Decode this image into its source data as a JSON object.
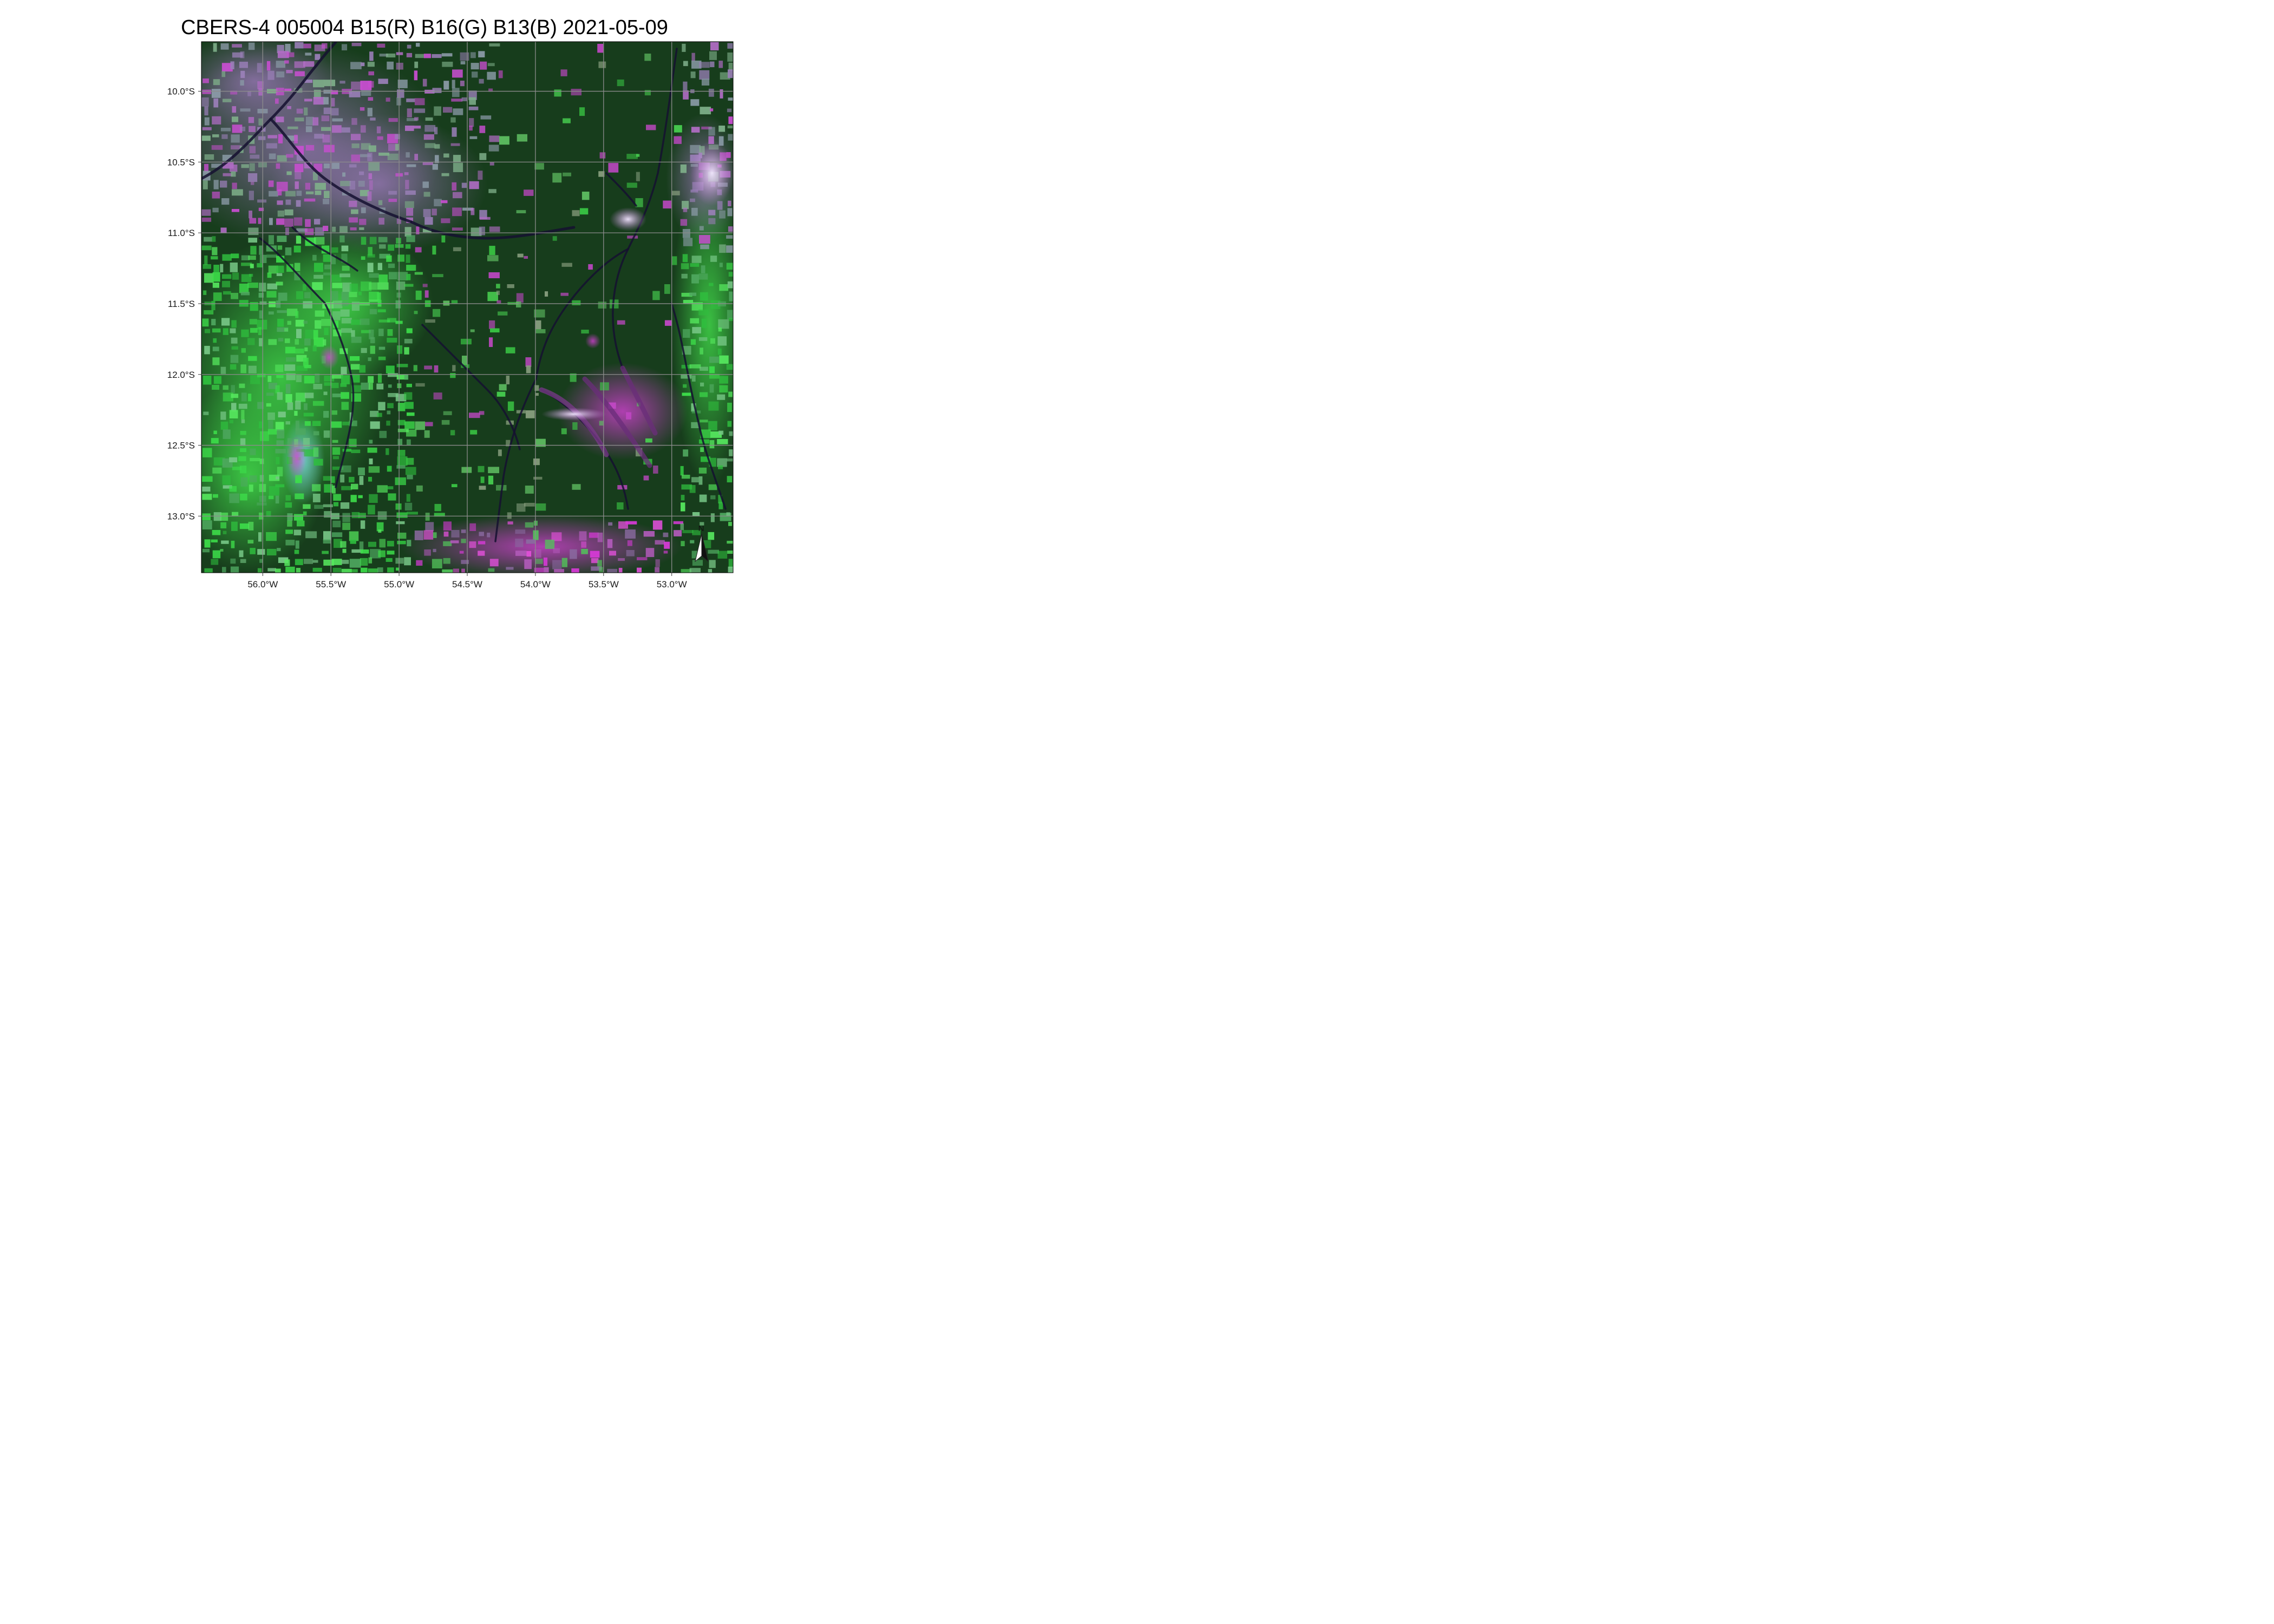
{
  "figure": {
    "title": "CBERS-4 005004 B15(R) B16(G) B13(B) 2021-05-09",
    "north_arrow_label": "N"
  },
  "chart_data": {
    "type": "map",
    "title": "CBERS-4 005004 B15(R) B16(G) B13(B) 2021-05-09",
    "image": "false-color satellite composite (B15 red, B16 green, B13 blue)",
    "grid": true,
    "lon_range": [
      -56.45,
      -52.55
    ],
    "lat_range": [
      -13.4,
      -9.65
    ],
    "x_ticks": [
      {
        "value": -56.0,
        "label": "56.0°W"
      },
      {
        "value": -55.5,
        "label": "55.5°W"
      },
      {
        "value": -55.0,
        "label": "55.0°W"
      },
      {
        "value": -54.5,
        "label": "54.5°W"
      },
      {
        "value": -54.0,
        "label": "54.0°W"
      },
      {
        "value": -53.5,
        "label": "53.5°W"
      },
      {
        "value": -53.0,
        "label": "53.0°W"
      }
    ],
    "y_ticks": [
      {
        "value": -10.0,
        "label": "10.0°S"
      },
      {
        "value": -10.5,
        "label": "10.5°S"
      },
      {
        "value": -11.0,
        "label": "11.0°S"
      },
      {
        "value": -11.5,
        "label": "11.5°S"
      },
      {
        "value": -12.0,
        "label": "12.0°S"
      },
      {
        "value": -12.5,
        "label": "12.5°S"
      },
      {
        "value": -13.0,
        "label": "13.0°S"
      }
    ],
    "north_arrow": "bottom-right"
  },
  "colors": {
    "forest": "#173d1c",
    "forest_light": "#2a5a2a",
    "field_green": "#3dde4a",
    "field_green_pale": "#77c786",
    "cleared_magenta": "#d63ad6",
    "cleared_violet": "#a07ab6",
    "water": "#151130",
    "grid": "#8c8c8c"
  }
}
